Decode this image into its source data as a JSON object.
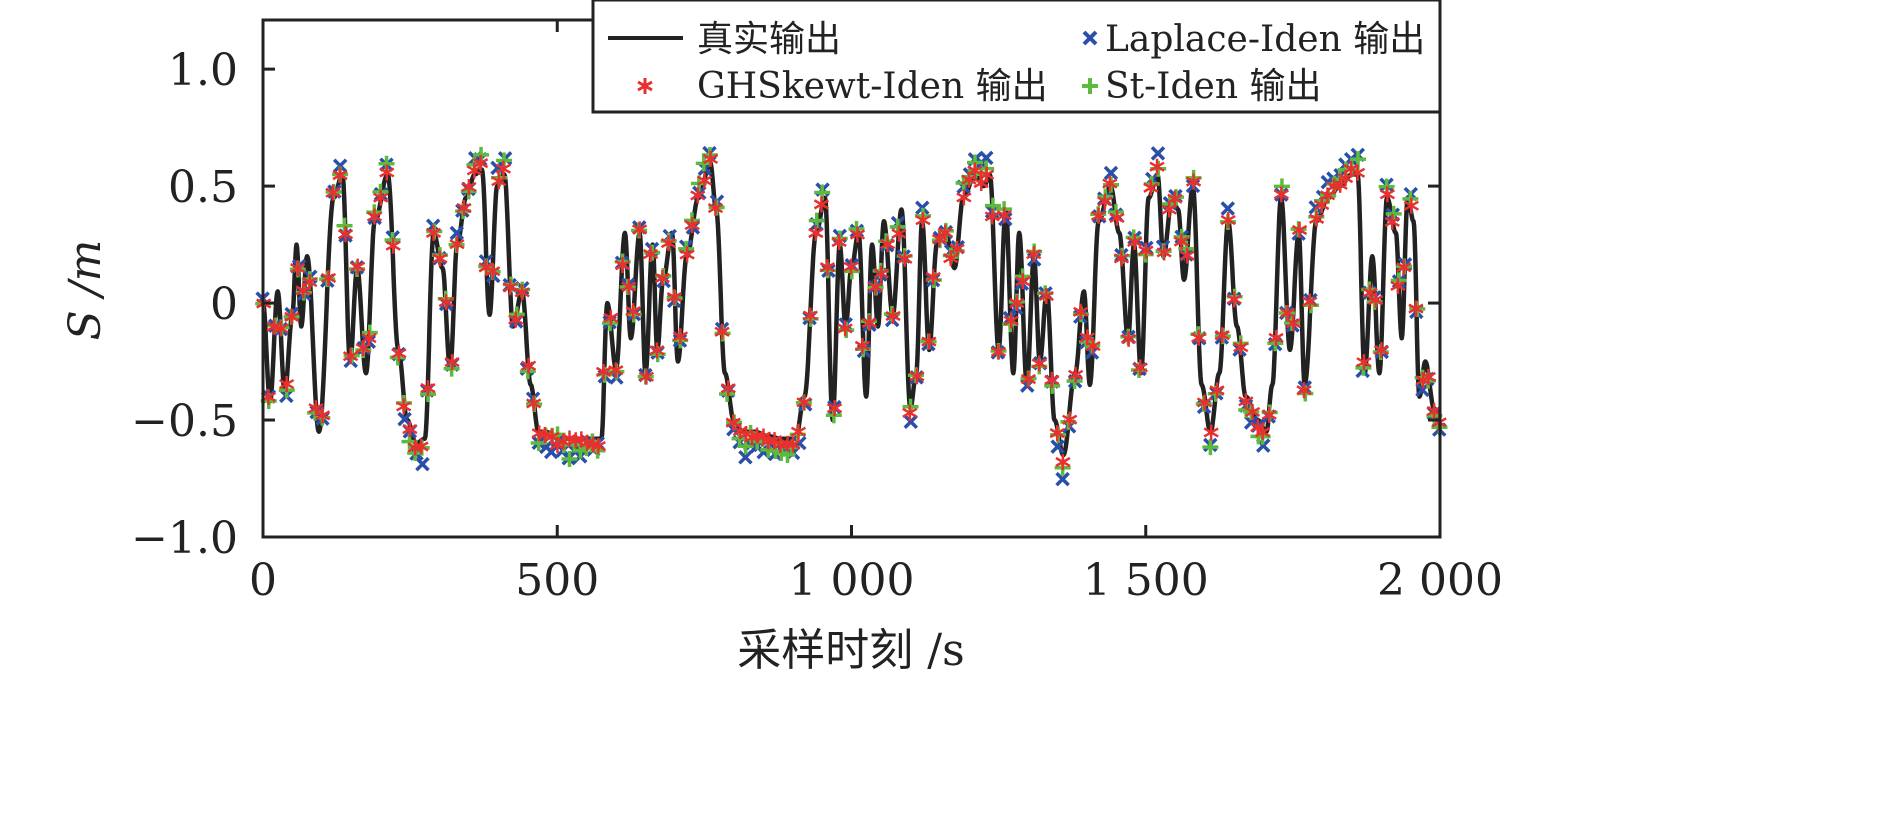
{
  "chart_data": {
    "type": "line",
    "title": "",
    "xlabel": "采样时刻 /s",
    "ylabel": "S /m",
    "xlim": [
      0,
      2000
    ],
    "ylim": [
      -1.0,
      1.21
    ],
    "grid": false,
    "legend_placement": "top-right",
    "x_ticks": [
      {
        "v": 0,
        "label": "0"
      },
      {
        "v": 500,
        "label": "500"
      },
      {
        "v": 1000,
        "label": "1 000"
      },
      {
        "v": 1500,
        "label": "1 500"
      },
      {
        "v": 2000,
        "label": "2 000"
      }
    ],
    "y_ticks": [
      {
        "v": -1.0,
        "label": "−1.0"
      },
      {
        "v": -0.5,
        "label": "−0.5"
      },
      {
        "v": 0,
        "label": "0"
      },
      {
        "v": 0.5,
        "label": "0.5"
      },
      {
        "v": 1.0,
        "label": "1.0"
      }
    ],
    "marker_interval": 10,
    "series": [
      {
        "name": "真实输出",
        "style": "line",
        "color": "#222222"
      },
      {
        "name": "Laplace-Iden 输出",
        "style": "x-marker",
        "color": "#2a4fa8",
        "error_scale": 0.15
      },
      {
        "name": "GHSkewt-Iden 输出",
        "style": "asterisk-marker",
        "color": "#e8302f",
        "error_scale": 0.05
      },
      {
        "name": "St-Iden 输出",
        "style": "plus-marker",
        "color": "#5cbb3c",
        "error_scale": 0.12
      }
    ],
    "true_output_keypoints": [
      [
        0,
        0
      ],
      [
        12,
        -0.42
      ],
      [
        25,
        0.05
      ],
      [
        37,
        -0.38
      ],
      [
        50,
        -0.05
      ],
      [
        57,
        0.25
      ],
      [
        65,
        -0.1
      ],
      [
        75,
        0.2
      ],
      [
        95,
        -0.55
      ],
      [
        120,
        0.45
      ],
      [
        135,
        0.55
      ],
      [
        148,
        -0.25
      ],
      [
        160,
        0.15
      ],
      [
        175,
        -0.3
      ],
      [
        190,
        0.35
      ],
      [
        212,
        0.55
      ],
      [
        230,
        -0.2
      ],
      [
        245,
        -0.5
      ],
      [
        260,
        -0.6
      ],
      [
        275,
        -0.58
      ],
      [
        290,
        0.3
      ],
      [
        305,
        0.15
      ],
      [
        318,
        -0.28
      ],
      [
        330,
        0.25
      ],
      [
        345,
        0.45
      ],
      [
        360,
        0.55
      ],
      [
        372,
        0.57
      ],
      [
        385,
        -0.05
      ],
      [
        398,
        0.5
      ],
      [
        410,
        0.55
      ],
      [
        425,
        -0.1
      ],
      [
        440,
        0.05
      ],
      [
        455,
        -0.35
      ],
      [
        468,
        -0.55
      ],
      [
        480,
        -0.55
      ],
      [
        500,
        -0.57
      ],
      [
        520,
        -0.58
      ],
      [
        560,
        -0.58
      ],
      [
        575,
        -0.58
      ],
      [
        585,
        0.0
      ],
      [
        600,
        -0.28
      ],
      [
        615,
        0.3
      ],
      [
        625,
        -0.15
      ],
      [
        640,
        0.3
      ],
      [
        650,
        -0.3
      ],
      [
        662,
        0.25
      ],
      [
        670,
        -0.2
      ],
      [
        680,
        0.1
      ],
      [
        695,
        0.3
      ],
      [
        705,
        -0.25
      ],
      [
        720,
        0.2
      ],
      [
        740,
        0.45
      ],
      [
        760,
        0.6
      ],
      [
        770,
        0.4
      ],
      [
        785,
        -0.3
      ],
      [
        800,
        -0.5
      ],
      [
        815,
        -0.55
      ],
      [
        835,
        -0.55
      ],
      [
        860,
        -0.57
      ],
      [
        880,
        -0.58
      ],
      [
        905,
        -0.58
      ],
      [
        920,
        -0.4
      ],
      [
        940,
        0.3
      ],
      [
        955,
        0.45
      ],
      [
        968,
        -0.5
      ],
      [
        980,
        0.25
      ],
      [
        990,
        -0.1
      ],
      [
        1000,
        0.15
      ],
      [
        1012,
        0.3
      ],
      [
        1025,
        -0.4
      ],
      [
        1035,
        0.25
      ],
      [
        1045,
        -0.1
      ],
      [
        1055,
        0.35
      ],
      [
        1070,
        -0.05
      ],
      [
        1085,
        0.4
      ],
      [
        1100,
        -0.45
      ],
      [
        1110,
        -0.3
      ],
      [
        1120,
        0.35
      ],
      [
        1132,
        -0.2
      ],
      [
        1145,
        0.25
      ],
      [
        1160,
        0.3
      ],
      [
        1175,
        0.15
      ],
      [
        1190,
        0.45
      ],
      [
        1210,
        0.55
      ],
      [
        1225,
        0.5
      ],
      [
        1235,
        0.55
      ],
      [
        1250,
        -0.2
      ],
      [
        1262,
        0.4
      ],
      [
        1275,
        -0.3
      ],
      [
        1285,
        0.3
      ],
      [
        1298,
        -0.35
      ],
      [
        1310,
        0.2
      ],
      [
        1320,
        -0.25
      ],
      [
        1332,
        0.05
      ],
      [
        1345,
        -0.5
      ],
      [
        1360,
        -0.65
      ],
      [
        1380,
        -0.3
      ],
      [
        1395,
        0.05
      ],
      [
        1405,
        -0.35
      ],
      [
        1420,
        0.35
      ],
      [
        1440,
        0.5
      ],
      [
        1455,
        0.3
      ],
      [
        1470,
        -0.15
      ],
      [
        1480,
        0.25
      ],
      [
        1492,
        -0.3
      ],
      [
        1505,
        0.45
      ],
      [
        1520,
        0.55
      ],
      [
        1530,
        0.2
      ],
      [
        1545,
        0.45
      ],
      [
        1555,
        0.4
      ],
      [
        1565,
        0.1
      ],
      [
        1580,
        0.5
      ],
      [
        1595,
        -0.35
      ],
      [
        1610,
        -0.55
      ],
      [
        1625,
        -0.3
      ],
      [
        1640,
        0.35
      ],
      [
        1655,
        -0.1
      ],
      [
        1670,
        -0.4
      ],
      [
        1690,
        -0.5
      ],
      [
        1705,
        -0.55
      ],
      [
        1715,
        -0.35
      ],
      [
        1730,
        0.45
      ],
      [
        1745,
        -0.2
      ],
      [
        1760,
        0.3
      ],
      [
        1770,
        -0.35
      ],
      [
        1790,
        0.35
      ],
      [
        1810,
        0.45
      ],
      [
        1830,
        0.5
      ],
      [
        1850,
        0.55
      ],
      [
        1860,
        0.55
      ],
      [
        1872,
        -0.3
      ],
      [
        1885,
        0.2
      ],
      [
        1897,
        -0.3
      ],
      [
        1910,
        0.45
      ],
      [
        1925,
        0.3
      ],
      [
        1935,
        -0.15
      ],
      [
        1945,
        0.45
      ],
      [
        1955,
        0.35
      ],
      [
        1965,
        -0.4
      ],
      [
        1975,
        -0.25
      ],
      [
        1990,
        -0.45
      ],
      [
        2000,
        -0.5
      ]
    ]
  }
}
